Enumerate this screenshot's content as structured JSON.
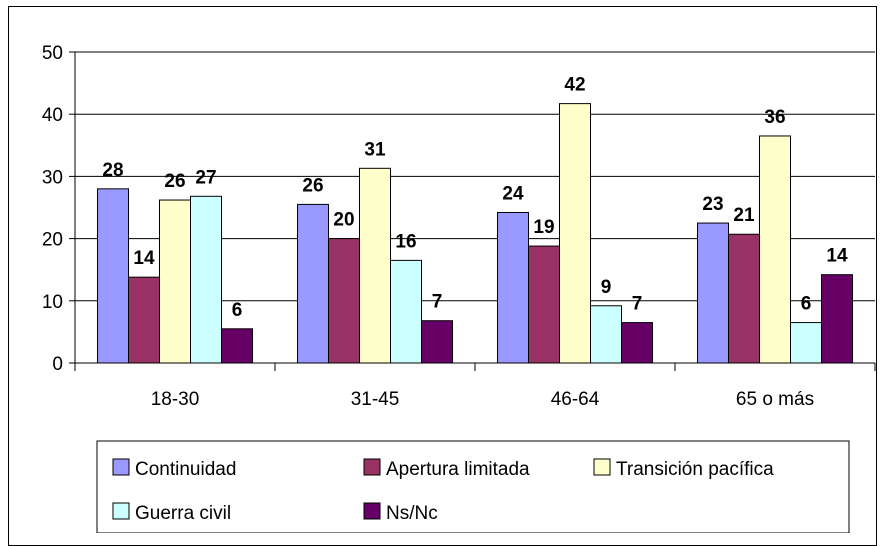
{
  "chart_data": {
    "type": "bar",
    "categories": [
      "18-30",
      "31-45",
      "46-64",
      "65 o más"
    ],
    "series": [
      {
        "name": "Continuidad",
        "color": "#9999ff",
        "values": [
          28,
          25.5,
          24.2,
          22.5
        ],
        "labels": [
          "28",
          "26",
          "24",
          "23"
        ]
      },
      {
        "name": "Apertura limitada",
        "color": "#993366",
        "values": [
          13.8,
          20,
          18.8,
          20.7
        ],
        "labels": [
          "14",
          "20",
          "19",
          "21"
        ]
      },
      {
        "name": "Transición pacífica",
        "color": "#ffffcc",
        "values": [
          26.2,
          31.3,
          41.7,
          36.5
        ],
        "labels": [
          "26",
          "31",
          "42",
          "36"
        ]
      },
      {
        "name": "Guerra civil",
        "color": "#ccffff",
        "values": [
          26.8,
          16.5,
          9.2,
          6.5
        ],
        "labels": [
          "27",
          "16",
          "9",
          "6"
        ]
      },
      {
        "name": "Ns/Nc",
        "color": "#660066",
        "values": [
          5.5,
          6.8,
          6.5,
          14.2
        ],
        "labels": [
          "6",
          "7",
          "7",
          "14"
        ]
      }
    ],
    "ylim": [
      0,
      50
    ],
    "yticks": [
      0,
      10,
      20,
      30,
      40,
      50
    ],
    "grid": true,
    "legend_position": "bottom",
    "title": "",
    "xlabel": "",
    "ylabel": ""
  }
}
